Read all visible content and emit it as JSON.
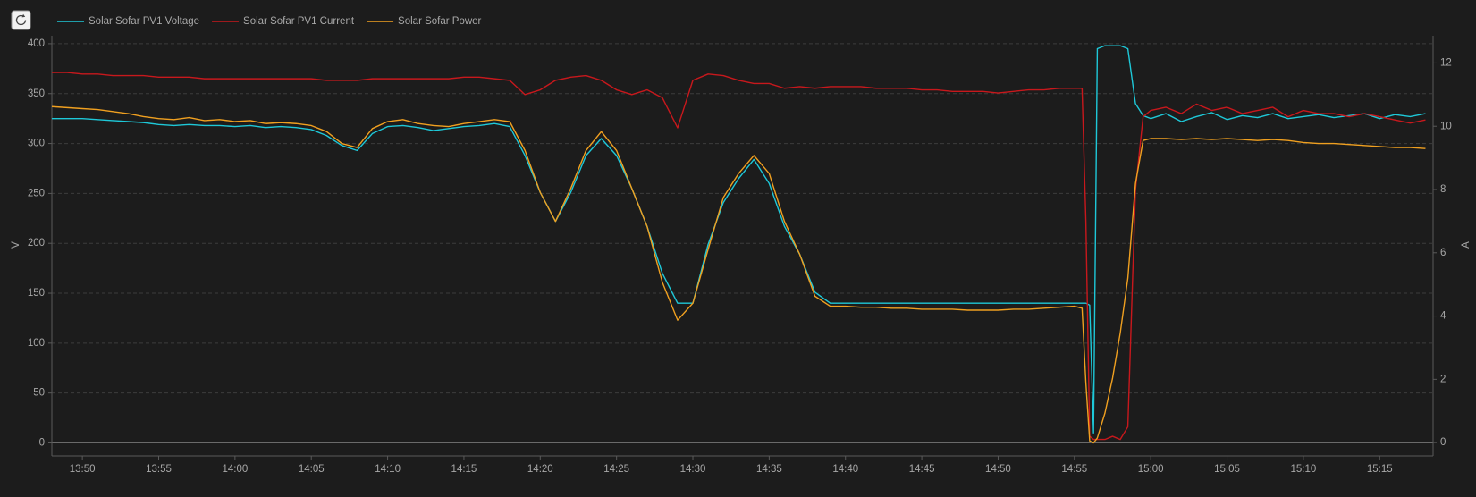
{
  "chart_data": {
    "type": "line",
    "y_label": "V",
    "y2_label": "A",
    "x": [
      "13:48",
      "13:49",
      "13:50",
      "13:51",
      "13:52",
      "13:53",
      "13:54",
      "13:55",
      "13:56",
      "13:57",
      "13:58",
      "13:59",
      "14:00",
      "14:01",
      "14:02",
      "14:03",
      "14:04",
      "14:05",
      "14:06",
      "14:07",
      "14:08",
      "14:09",
      "14:10",
      "14:11",
      "14:12",
      "14:13",
      "14:14",
      "14:15",
      "14:16",
      "14:17",
      "14:18",
      "14:19",
      "14:20",
      "14:21",
      "14:22",
      "14:23",
      "14:24",
      "14:25",
      "14:26",
      "14:27",
      "14:28",
      "14:29",
      "14:30",
      "14:31",
      "14:32",
      "14:33",
      "14:34",
      "14:35",
      "14:36",
      "14:37",
      "14:38",
      "14:39",
      "14:40",
      "14:41",
      "14:42",
      "14:43",
      "14:44",
      "14:45",
      "14:46",
      "14:47",
      "14:48",
      "14:49",
      "14:50",
      "14:51",
      "14:52",
      "14:53",
      "14:54",
      "14:55:00",
      "14:55:30",
      "14:55:45",
      "14:56:00",
      "14:56:15",
      "14:56:30",
      "14:57:00",
      "14:57:30",
      "14:58:00",
      "14:58:30",
      "14:59:00",
      "14:59:30",
      "15:00",
      "15:01",
      "15:02",
      "15:03",
      "15:04",
      "15:05",
      "15:06",
      "15:07",
      "15:08",
      "15:09",
      "15:10",
      "15:11",
      "15:12",
      "15:13",
      "15:14",
      "15:15",
      "15:16",
      "15:17",
      "15:18"
    ],
    "series": [
      {
        "name": "Solar Sofar PV1 Voltage",
        "color": "#1ec8d8",
        "values": [
          325,
          325,
          325,
          324,
          323,
          322,
          321,
          319,
          318,
          319,
          318,
          318,
          317,
          318,
          316,
          317,
          316,
          314,
          308,
          298,
          293,
          310,
          317,
          318,
          316,
          313,
          315,
          317,
          318,
          320,
          317,
          288,
          251,
          222,
          251,
          288,
          305,
          288,
          255,
          217,
          170,
          140,
          140,
          199,
          241,
          265,
          284,
          260,
          217,
          189,
          151,
          140,
          140,
          140,
          140,
          140,
          140,
          140,
          140,
          140,
          140,
          140,
          140,
          140,
          140,
          140,
          140,
          140,
          140,
          140,
          138,
          10,
          395,
          398,
          398,
          398,
          395,
          340,
          328,
          325,
          330,
          322,
          327,
          331,
          324,
          328,
          326,
          330,
          325,
          327,
          329,
          326,
          328,
          330,
          325,
          329,
          327,
          330
        ]
      },
      {
        "name": "Solar Sofar PV1 Current",
        "color": "#c8181c",
        "axis": "y2",
        "values": [
          11.7,
          11.7,
          11.65,
          11.65,
          11.6,
          11.6,
          11.6,
          11.55,
          11.55,
          11.55,
          11.5,
          11.5,
          11.5,
          11.5,
          11.5,
          11.5,
          11.5,
          11.5,
          11.45,
          11.45,
          11.45,
          11.5,
          11.5,
          11.5,
          11.5,
          11.5,
          11.5,
          11.55,
          11.55,
          11.5,
          11.45,
          11.0,
          11.15,
          11.45,
          11.55,
          11.6,
          11.45,
          11.15,
          11.0,
          11.15,
          10.9,
          9.95,
          11.45,
          11.65,
          11.6,
          11.45,
          11.35,
          11.35,
          11.2,
          11.25,
          11.2,
          11.25,
          11.25,
          11.25,
          11.2,
          11.2,
          11.2,
          11.15,
          11.15,
          11.1,
          11.1,
          11.1,
          11.05,
          11.1,
          11.15,
          11.15,
          11.2,
          11.2,
          11.2,
          7,
          0.2,
          0.1,
          0.1,
          0.1,
          0.2,
          0.1,
          0.5,
          8,
          10.3,
          10.5,
          10.6,
          10.4,
          10.7,
          10.5,
          10.6,
          10.4,
          10.5,
          10.6,
          10.3,
          10.5,
          10.4,
          10.4,
          10.3,
          10.4,
          10.3,
          10.2,
          10.1,
          10.2
        ]
      },
      {
        "name": "Solar Sofar Power",
        "color": "#f0a020",
        "values": [
          337,
          336,
          335,
          334,
          332,
          330,
          327,
          325,
          324,
          326,
          323,
          324,
          322,
          323,
          320,
          321,
          320,
          318,
          312,
          300,
          296,
          315,
          322,
          324,
          320,
          318,
          317,
          320,
          322,
          324,
          322,
          293,
          251,
          222,
          255,
          293,
          312,
          293,
          255,
          217,
          161,
          123,
          140,
          194,
          246,
          270,
          288,
          270,
          222,
          189,
          147,
          137,
          137,
          136,
          136,
          135,
          135,
          134,
          134,
          134,
          133,
          133,
          133,
          134,
          134,
          135,
          136,
          137,
          135,
          60,
          2,
          0,
          5,
          30,
          65,
          110,
          165,
          260,
          303,
          305,
          305,
          304,
          305,
          304,
          305,
          304,
          303,
          304,
          303,
          301,
          300,
          300,
          299,
          298,
          297,
          296,
          296,
          295
        ]
      }
    ],
    "xlim": [
      "13:48",
      "15:18:30"
    ],
    "xticks": [
      "13:50",
      "13:55",
      "14:00",
      "14:05",
      "14:10",
      "14:15",
      "14:20",
      "14:25",
      "14:30",
      "14:35",
      "14:40",
      "14:45",
      "14:50",
      "14:55",
      "15:00",
      "15:05",
      "15:10",
      "15:15"
    ],
    "ylim": [
      -13,
      408
    ],
    "yticks": [
      0,
      50,
      100,
      150,
      200,
      250,
      300,
      350,
      400
    ],
    "y2lim": [
      -0.42,
      12.86
    ],
    "y2ticks": [
      0,
      2,
      4,
      6,
      8,
      10,
      12
    ],
    "grid": true,
    "legend": "top-left"
  }
}
